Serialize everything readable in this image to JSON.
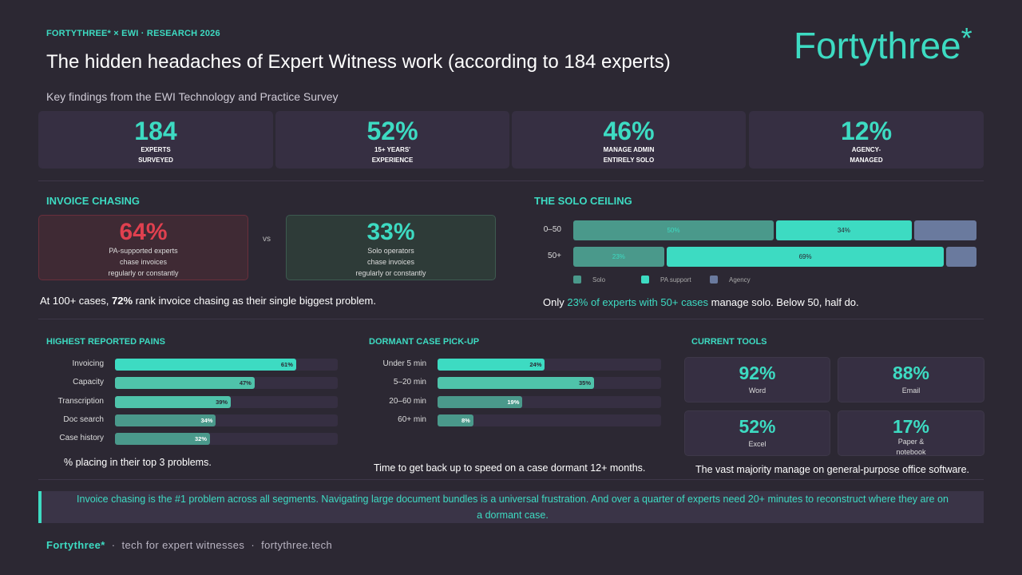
{
  "header": {
    "kicker": "FORTYTHREE* × EWI  ·  RESEARCH 2026",
    "title": "The hidden headaches of Expert Witness work (according to 184 experts)",
    "subtitle": "Key findings from the EWI Technology and Practice Survey",
    "logo_text": "Fortythree",
    "logo_mark": "*"
  },
  "kpis": [
    {
      "value": "184",
      "label": "EXPERTS\nSURVEYED"
    },
    {
      "value": "52%",
      "label": "15+ YEARS'\nEXPERIENCE"
    },
    {
      "value": "46%",
      "label": "MANAGE ADMIN\nENTIRELY SOLO"
    },
    {
      "value": "12%",
      "label": "AGENCY-\nMANAGED"
    }
  ],
  "invoice": {
    "heading": "INVOICE CHASING",
    "left": {
      "value": "64%",
      "label": "PA-supported experts\nchase invoices\nregularly or constantly",
      "color": "#e0404f"
    },
    "vs": "vs",
    "right": {
      "value": "33%",
      "label": "Solo operators\nchase invoices\nregularly or constantly",
      "color": "#3ddbc2"
    },
    "note_pre": "At 100+ cases, ",
    "note_bold": "72%",
    "note_post": " rank invoice chasing as their single biggest problem."
  },
  "solo": {
    "heading": "THE SOLO CEILING",
    "note_pre": "Only ",
    "note_hl": "23% of experts with 50+ cases",
    "note_post": " manage solo. Below 50, half do."
  },
  "pains": {
    "heading": "HIGHEST REPORTED PAINS",
    "caption": "% placing in their top 3 problems."
  },
  "dormant": {
    "heading": "DORMANT CASE PICK-UP",
    "caption": "Time to get back up to speed on a case dormant 12+ months."
  },
  "tools": {
    "heading": "CURRENT TOOLS",
    "items": [
      {
        "value": "92%",
        "label": "Word"
      },
      {
        "value": "88%",
        "label": "Email"
      },
      {
        "value": "52%",
        "label": "Excel"
      },
      {
        "value": "17%",
        "label": "Paper &\nnotebook"
      }
    ],
    "caption": "The vast majority manage on general-purpose office software."
  },
  "callout": "Invoice chasing is the #1 problem across all segments. Navigating large document bundles is a universal frustration. And over a quarter of experts need 20+ minutes to reconstruct where they are on a dormant case.",
  "footer": {
    "brand": "Fortythree*",
    "tagline": "  ·  tech for expert witnesses  ·  fortythree.tech"
  },
  "colors": {
    "accent": "#3ddbc2",
    "mid": "#4fc3aa",
    "dark": "#4a998b",
    "agency": "#6a7a9e",
    "red": "#e0404f",
    "bg": "#2c2833"
  },
  "chart_data": [
    {
      "type": "bar",
      "orientation": "horizontal",
      "stacked": true,
      "title": "THE SOLO CEILING",
      "categories": [
        "0–50",
        "50+"
      ],
      "series": [
        {
          "name": "Solo",
          "values": [
            50,
            23
          ],
          "labels": [
            "50%",
            "23%"
          ],
          "color": "#4a998b"
        },
        {
          "name": "PA support",
          "values": [
            34,
            69
          ],
          "labels": [
            "34%",
            "69%"
          ],
          "color": "#3ddbc2"
        },
        {
          "name": "Agency",
          "values": [
            16,
            8
          ],
          "labels": [
            "",
            ""
          ],
          "color": "#6a7a9e"
        }
      ],
      "legend": "bottom",
      "xlim": [
        0,
        100
      ]
    },
    {
      "type": "bar",
      "orientation": "horizontal",
      "title": "HIGHEST REPORTED PAINS",
      "categories": [
        "Invoicing",
        "Capacity",
        "Transcription",
        "Doc search",
        "Case history"
      ],
      "values": [
        61,
        47,
        39,
        34,
        32
      ],
      "colors": [
        "#3ddbc2",
        "#4fc3aa",
        "#4fc3aa",
        "#4a998b",
        "#4a998b"
      ],
      "xlim": [
        0,
        75
      ]
    },
    {
      "type": "bar",
      "orientation": "horizontal",
      "title": "DORMANT CASE PICK-UP",
      "categories": [
        "Under 5 min",
        "5–20 min",
        "20–60 min",
        "60+ min"
      ],
      "values": [
        24,
        35,
        19,
        8
      ],
      "colors": [
        "#3ddbc2",
        "#4fc3aa",
        "#4a998b",
        "#4a998b"
      ],
      "xlim": [
        0,
        50
      ]
    }
  ]
}
